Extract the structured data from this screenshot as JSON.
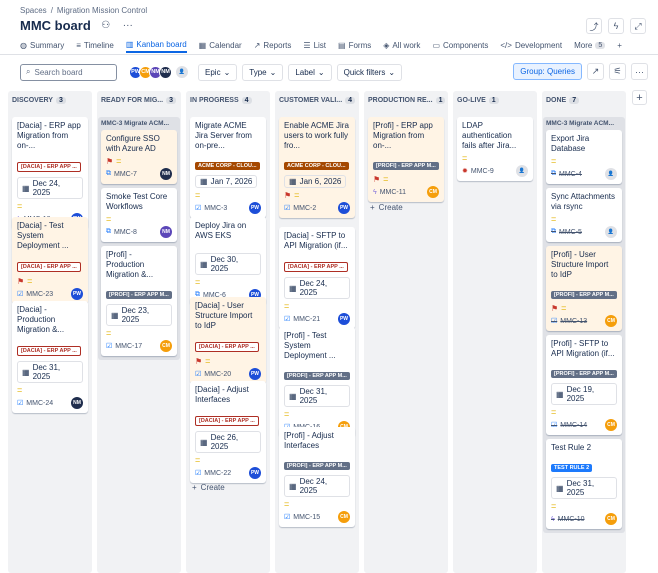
{
  "breadcrumb": {
    "root": "Spaces",
    "sep": "/",
    "project": "Migration Mission Control"
  },
  "header": {
    "title": "MMC board"
  },
  "tabs": [
    {
      "icon": "globe-icon",
      "glyph": "◍",
      "label": "Summary"
    },
    {
      "icon": "timeline-icon",
      "glyph": "≡",
      "label": "Timeline"
    },
    {
      "icon": "board-icon",
      "glyph": "▥",
      "label": "Kanban board",
      "active": true
    },
    {
      "icon": "calendar-icon",
      "glyph": "▦",
      "label": "Calendar"
    },
    {
      "icon": "chart-icon",
      "glyph": "↗",
      "label": "Reports"
    },
    {
      "icon": "list-icon",
      "glyph": "☰",
      "label": "List"
    },
    {
      "icon": "form-icon",
      "glyph": "▤",
      "label": "Forms"
    },
    {
      "icon": "all-work-icon",
      "glyph": "◈",
      "label": "All work"
    },
    {
      "icon": "components-icon",
      "glyph": "▭",
      "label": "Components"
    },
    {
      "icon": "code-icon",
      "glyph": "</>",
      "label": "Development"
    }
  ],
  "more": {
    "label": "More",
    "count": "5"
  },
  "toolbar": {
    "search_placeholder": "Search board",
    "avatars": [
      {
        "initials": "PW",
        "color": "#1d4ed8"
      },
      {
        "initials": "CM",
        "color": "#f59e0b"
      },
      {
        "initials": "NM",
        "color": "#5b46b8"
      },
      {
        "initials": "NM",
        "color": "#1f2d4d"
      }
    ],
    "filters": [
      "Epic",
      "Type",
      "Label",
      "Quick filters"
    ],
    "group_label": "Group: Queries"
  },
  "columns": [
    {
      "name": "DISCOVERY",
      "count": "3",
      "cards": [
        {
          "title": "[Dacia] - ERP app Migration from on-...",
          "label": "[DACIA] - ERP APP ...",
          "label_style": "red",
          "date": "Dec 24, 2025",
          "key": "MMC-18",
          "type": "epic",
          "avatar": "PW",
          "avatar_color": "#1d4ed8",
          "hl": false
        },
        {
          "title": "[Dacia] - Test System Deployment ...",
          "label": "[DACIA] - ERP APP ...",
          "label_style": "red",
          "key": "MMC-23",
          "type": "task",
          "avatar": "PW",
          "avatar_color": "#1d4ed8",
          "hl": true,
          "flag": true
        },
        {
          "title": "[Dacia] - Production Migration &...",
          "label": "[DACIA] - ERP APP ...",
          "label_style": "red",
          "date": "Dec 31, 2025",
          "key": "MMC-24",
          "type": "task",
          "avatar": "NM",
          "avatar_color": "#1f2d4d",
          "hl": false
        }
      ]
    },
    {
      "name": "READY FOR MIG...",
      "count": "3",
      "parent": "MMC-3 Migrate ACM...",
      "cards": [
        {
          "title": "Configure SSO with Azure AD",
          "key": "MMC-7",
          "type": "sub",
          "avatar": "NM",
          "avatar_color": "#1f2d4d",
          "hl": true,
          "flag": true
        },
        {
          "title": "Smoke Test Core Workflows",
          "key": "MMC-8",
          "type": "sub",
          "avatar": "NM",
          "avatar_color": "#5b46b8",
          "hl": false
        },
        {
          "title": "[Profi] - Production Migration &...",
          "label": "[PROFI] - ERP APP M...",
          "label_style": "dark",
          "date": "Dec 23, 2025",
          "key": "MMC-17",
          "type": "task",
          "avatar": "CM",
          "avatar_color": "#f59e0b",
          "hl": false
        }
      ]
    },
    {
      "name": "IN PROGRESS",
      "count": "4",
      "cards": [
        {
          "title": "Migrate ACME Jira Server from on-pre...",
          "label": "ACME CORP - CLOU...",
          "label_style": "orange",
          "date": "Jan 7, 2026",
          "key": "MMC-3",
          "type": "task",
          "avatar": "PW",
          "avatar_color": "#1d4ed8",
          "hl": false
        },
        {
          "title": "Deploy Jira on AWS EKS",
          "date": "Dec 30, 2025",
          "key": "MMC-6",
          "type": "sub",
          "avatar": "PW",
          "avatar_color": "#1d4ed8",
          "hl": false
        },
        {
          "title": "[Dacia] - User Structure Import to IdP",
          "label": "[DACIA] - ERP APP ...",
          "label_style": "red",
          "key": "MMC-20",
          "type": "task",
          "avatar": "PW",
          "avatar_color": "#1d4ed8",
          "hl": true,
          "flag": true
        },
        {
          "title": "[Dacia] - Adjust Interfaces",
          "label": "[DACIA] - ERP APP ...",
          "label_style": "red",
          "date": "Dec 26, 2025",
          "key": "MMC-22",
          "type": "task",
          "avatar": "PW",
          "avatar_color": "#1d4ed8",
          "hl": false
        }
      ]
    },
    {
      "name": "CUSTOMER VALI...",
      "count": "4",
      "cards": [
        {
          "title": "Enable ACME Jira users to work fully fro...",
          "label": "ACME CORP - CLOU...",
          "label_style": "orange",
          "date": "Jan 6, 2026",
          "key": "MMC-2",
          "type": "task",
          "avatar": "PW",
          "avatar_color": "#1d4ed8",
          "hl": true,
          "flag": true
        },
        {
          "title": "[Dacia] - SFTP to API Migration (if...",
          "label": "[DACIA] - ERP APP ...",
          "label_style": "red",
          "date": "Dec 24, 2025",
          "key": "MMC-21",
          "type": "task",
          "avatar": "PW",
          "avatar_color": "#1d4ed8",
          "hl": false
        },
        {
          "title": "[Profi] - Test System Deployment ...",
          "label": "[PROFI] - ERP APP M...",
          "label_style": "dark",
          "date": "Dec 31, 2025",
          "key": "MMC-16",
          "type": "task",
          "avatar": "CM",
          "avatar_color": "#f59e0b",
          "hl": false
        },
        {
          "title": "[Profi] - Adjust Interfaces",
          "label": "[PROFI] - ERP APP M...",
          "label_style": "dark",
          "date": "Dec 24, 2025",
          "key": "MMC-15",
          "type": "task",
          "avatar": "CM",
          "avatar_color": "#f59e0b",
          "hl": false
        }
      ]
    },
    {
      "name": "PRODUCTION RE...",
      "count": "1",
      "cards": [
        {
          "title": "[Profi] - ERP app Migration from on-...",
          "label": "[PROFI] - ERP APP M...",
          "label_style": "dark",
          "key": "MMC-11",
          "type": "epic",
          "avatar": "CM",
          "avatar_color": "#f59e0b",
          "hl": true,
          "flag": true
        }
      ]
    },
    {
      "name": "GO-LIVE",
      "count": "1",
      "cards": [
        {
          "title": "LDAP authentication fails after Jira...",
          "key": "MMC-9",
          "type": "bug",
          "avatar": "",
          "hl": false
        }
      ]
    },
    {
      "name": "DONE",
      "count": "7",
      "parent": "MMC-3 Migrate ACM...",
      "cards": [
        {
          "title": "Export Jira Database",
          "key": "MMC-4",
          "type": "sub",
          "avatar": "",
          "hl": false,
          "done": true
        },
        {
          "title": "Sync Attachments via rsync",
          "key": "MMC-5",
          "type": "sub",
          "avatar": "",
          "hl": false,
          "done": true
        },
        {
          "title": "[Profi] - User Structure Import to IdP",
          "label": "[PROFI] - ERP APP M...",
          "label_style": "dark",
          "key": "MMC-13",
          "type": "task",
          "avatar": "CM",
          "avatar_color": "#f59e0b",
          "hl": true,
          "flag": true,
          "done": true
        },
        {
          "title": "[Profi] - SFTP to API Migration (if...",
          "label": "[PROFI] - ERP APP M...",
          "label_style": "dark",
          "date": "Dec 19, 2025",
          "key": "MMC-14",
          "type": "task",
          "avatar": "CM",
          "avatar_color": "#f59e0b",
          "hl": false,
          "done": true
        },
        {
          "title": "Test Rule 2",
          "label": "TEST RULE 2",
          "label_style": "blue",
          "date": "Dec 31, 2025",
          "key": "MMC-10",
          "type": "epic",
          "avatar": "CM",
          "avatar_color": "#f59e0b",
          "hl": false,
          "done": true
        }
      ]
    }
  ],
  "create_label": "Create"
}
